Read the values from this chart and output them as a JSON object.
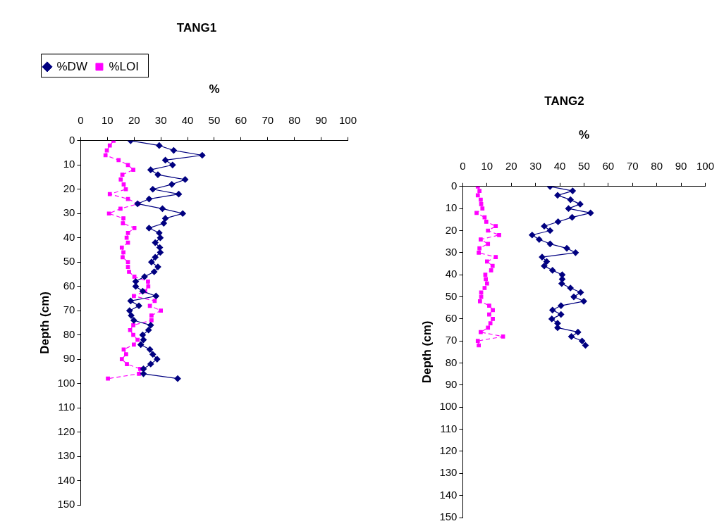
{
  "chart_data": [
    {
      "type": "line",
      "title": "TANG1",
      "xlabel": "%",
      "ylabel": "Depth (cm)",
      "xlim": [
        0,
        100
      ],
      "xticks": [
        0,
        10,
        20,
        30,
        40,
        50,
        60,
        70,
        80,
        90,
        100
      ],
      "ylim": [
        150,
        0
      ],
      "yticks": [
        0,
        10,
        20,
        30,
        40,
        50,
        60,
        70,
        80,
        90,
        100,
        110,
        120,
        130,
        140,
        150
      ],
      "grid": false,
      "legend": "top left",
      "series": [
        {
          "name": "%DW",
          "color": "#000080",
          "marker": "diamond",
          "line_style": "solid",
          "x": [
            18.7,
            29.4,
            34.8,
            45.5,
            31.7,
            34.4,
            26.2,
            28.9,
            39.1,
            34.1,
            27.0,
            36.7,
            25.6,
            21.3,
            30.6,
            38.2,
            31.7,
            31.1,
            25.6,
            29.4,
            29.8,
            27.9,
            29.6,
            29.8,
            27.9,
            26.5,
            28.9,
            27.5,
            23.9,
            20.6,
            20.6,
            23.2,
            28.2,
            18.7,
            21.8,
            18.3,
            18.9,
            19.9,
            26.2,
            25.4,
            23.2,
            23.5,
            22.5,
            25.9,
            27.0,
            28.6,
            26.2,
            23.5,
            23.5,
            36.3
          ],
          "values": [
            0,
            2,
            4,
            6,
            8,
            10,
            12,
            14,
            16,
            18,
            20,
            22,
            24,
            26,
            28,
            30,
            32,
            34,
            36,
            38,
            40,
            42,
            44,
            46,
            48,
            50,
            52,
            54,
            56,
            58,
            60,
            62,
            64,
            66,
            68,
            70,
            72,
            74,
            76,
            78,
            80,
            82,
            84,
            86,
            88,
            90,
            92,
            94,
            96,
            98
          ]
        },
        {
          "name": "%LOI",
          "color": "#ff00ff",
          "marker": "square",
          "line_style": "dashed",
          "x": [
            12.3,
            10.9,
            9.8,
            9.3,
            14.2,
            17.7,
            19.7,
            15.6,
            15.0,
            16.1,
            16.9,
            10.9,
            17.7,
            21.5,
            14.9,
            10.6,
            16.0,
            15.8,
            20.1,
            17.7,
            17.2,
            17.7,
            15.4,
            16.0,
            15.7,
            17.7,
            17.7,
            18.1,
            20.1,
            25.2,
            25.3,
            24.1,
            19.9,
            27.7,
            25.9,
            30.0,
            26.5,
            26.5,
            19.7,
            18.5,
            19.7,
            21.3,
            19.9,
            16.1,
            17.0,
            15.4,
            17.3,
            22.3,
            21.8,
            10.2
          ],
          "values": [
            0,
            2,
            4,
            6,
            8,
            10,
            12,
            14,
            16,
            18,
            20,
            22,
            24,
            26,
            28,
            30,
            32,
            34,
            36,
            38,
            40,
            42,
            44,
            46,
            48,
            50,
            52,
            54,
            56,
            58,
            60,
            62,
            64,
            66,
            68,
            70,
            72,
            74,
            76,
            78,
            80,
            82,
            84,
            86,
            88,
            90,
            92,
            94,
            96,
            98
          ]
        }
      ]
    },
    {
      "type": "line",
      "title": "TANG2",
      "xlabel": "%",
      "ylabel": "Depth (cm)",
      "xlim": [
        0,
        100
      ],
      "xticks": [
        0,
        10,
        20,
        30,
        40,
        50,
        60,
        70,
        80,
        90,
        100
      ],
      "ylim": [
        150,
        0
      ],
      "yticks": [
        0,
        10,
        20,
        30,
        40,
        50,
        60,
        70,
        80,
        90,
        100,
        110,
        120,
        130,
        140,
        150
      ],
      "grid": false,
      "series": [
        {
          "color": "#000080",
          "marker": "diamond",
          "line_style": "solid",
          "x": [
            36.0,
            45.3,
            39.1,
            44.4,
            48.4,
            43.6,
            52.7,
            45.1,
            39.3,
            33.6,
            36.0,
            28.6,
            31.5,
            36.0,
            42.9,
            46.5,
            32.7,
            34.6,
            33.6,
            37.0,
            41.0,
            41.0,
            40.8,
            44.4,
            48.6,
            45.8,
            49.9,
            40.5,
            37.0,
            40.5,
            36.7,
            39.1,
            39.1,
            47.5,
            44.8,
            49.2,
            50.6
          ],
          "values": [
            0,
            2,
            4,
            6,
            8,
            10,
            12,
            14,
            16,
            18,
            20,
            22,
            24,
            26,
            28,
            30,
            32,
            34,
            36,
            38,
            40,
            42,
            44,
            46,
            48,
            50,
            52,
            54,
            56,
            58,
            60,
            62,
            64,
            66,
            68,
            70,
            72
          ]
        },
        {
          "color": "#ff00ff",
          "marker": "square",
          "line_style": "dashed",
          "x": [
            6.2,
            6.9,
            6.2,
            7.4,
            7.6,
            8.1,
            5.7,
            9.0,
            9.7,
            13.6,
            10.4,
            15.0,
            7.4,
            10.4,
            6.9,
            6.6,
            13.6,
            10.0,
            12.3,
            11.7,
            9.3,
            9.5,
            10.0,
            9.0,
            7.6,
            7.6,
            7.1,
            10.9,
            12.4,
            10.9,
            12.4,
            11.4,
            10.4,
            7.4,
            16.6,
            6.2,
            6.6
          ],
          "values": [
            0,
            2,
            4,
            6,
            8,
            10,
            12,
            14,
            16,
            18,
            20,
            22,
            24,
            26,
            28,
            30,
            32,
            34,
            36,
            38,
            40,
            42,
            44,
            46,
            48,
            50,
            52,
            54,
            56,
            58,
            60,
            62,
            64,
            66,
            68,
            70,
            72
          ]
        }
      ]
    }
  ]
}
